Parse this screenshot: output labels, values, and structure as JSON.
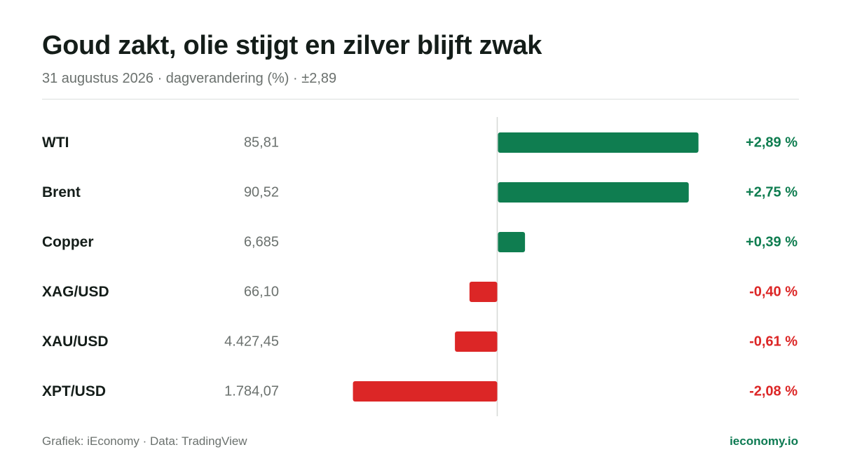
{
  "header": {
    "title": "Goud zakt, olie stijgt en zilver blijft zwak",
    "subtitle": "31 augustus 2026 · dagverandering (%) · ±2,89"
  },
  "footer": {
    "credit": "Grafiek: iEconomy · Data: TradingView",
    "site": "ieconomy.io"
  },
  "colors": {
    "positive": "#0f7d50",
    "negative": "#dc2626",
    "axis": "#d5d8d6"
  },
  "chart_data": {
    "type": "bar",
    "orientation": "horizontal",
    "categories": [
      "WTI",
      "Brent",
      "Copper",
      "XAG/USD",
      "XAU/USD",
      "XPT/USD"
    ],
    "prices": [
      "85,81",
      "90,52",
      "6,685",
      "66,10",
      "4.427,45",
      "1.784,07"
    ],
    "values": [
      2.89,
      2.75,
      0.39,
      -0.4,
      -0.61,
      -2.08
    ],
    "change_labels": [
      "+2,89 %",
      "+2,75 %",
      "+0,39 %",
      "-0,40 %",
      "-0,61 %",
      "-2,08 %"
    ],
    "title": "Goud zakt, olie stijgt en zilver blijft zwak",
    "xlabel": "",
    "ylabel": "",
    "grid": false
  }
}
